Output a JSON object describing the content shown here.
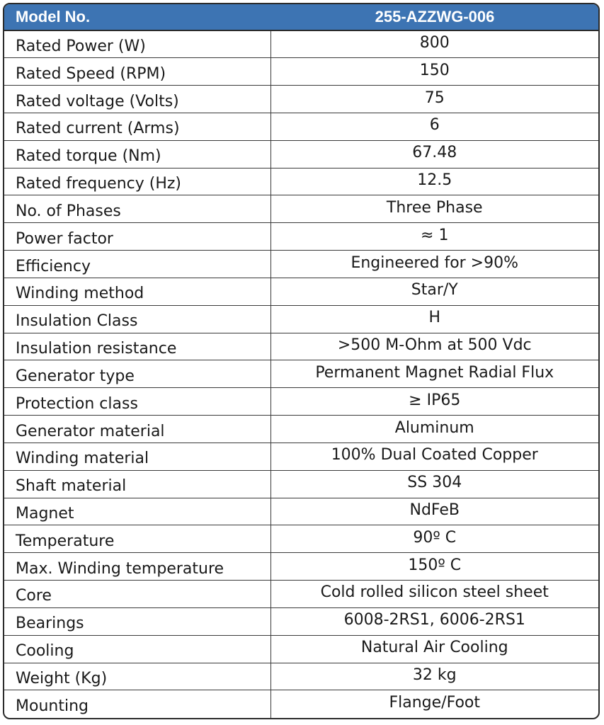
{
  "header": {
    "label": "Model No.",
    "value": "255-AZZWG-006"
  },
  "rows": [
    {
      "label": "Rated Power (W)",
      "value": "800"
    },
    {
      "label": "Rated Speed (RPM)",
      "value": "150"
    },
    {
      "label": "Rated voltage (Volts)",
      "value": "75"
    },
    {
      "label": "Rated current (Arms)",
      "value": "6"
    },
    {
      "label": "Rated torque (Nm)",
      "value": "67.48"
    },
    {
      "label": "Rated frequency (Hz)",
      "value": "12.5"
    },
    {
      "label": "No. of Phases",
      "value": "Three Phase"
    },
    {
      "label": "Power factor",
      "value": "≈ 1"
    },
    {
      "label": "Efficiency",
      "value": "Engineered for >90%"
    },
    {
      "label": "Winding method",
      "value": "Star/Y"
    },
    {
      "label": "Insulation Class",
      "value": "H"
    },
    {
      "label": "Insulation resistance",
      "value": ">500 M-Ohm at 500 Vdc"
    },
    {
      "label": "Generator type",
      "value": "Permanent Magnet Radial Flux"
    },
    {
      "label": "Protection class",
      "value": "≥ IP65"
    },
    {
      "label": "Generator material",
      "value": "Aluminum"
    },
    {
      "label": "Winding material",
      "value": "100% Dual Coated Copper"
    },
    {
      "label": "Shaft material",
      "value": "SS 304"
    },
    {
      "label": "Magnet",
      "value": "NdFeB"
    },
    {
      "label": "Temperature",
      "value": "90º C"
    },
    {
      "label": "Max. Winding temperature",
      "value": "150º C"
    },
    {
      "label": "Core",
      "value": "Cold rolled silicon steel sheet"
    },
    {
      "label": "Bearings",
      "value": "6008-2RS1, 6006-2RS1"
    },
    {
      "label": "Cooling",
      "value": "Natural Air Cooling"
    },
    {
      "label": "Weight (Kg)",
      "value": "32 kg"
    },
    {
      "label": "Mounting",
      "value": "Flange/Foot"
    }
  ],
  "colors": {
    "header_bg": "#3d74b3",
    "header_text": "#ffffff",
    "border": "#2b2b2b"
  }
}
